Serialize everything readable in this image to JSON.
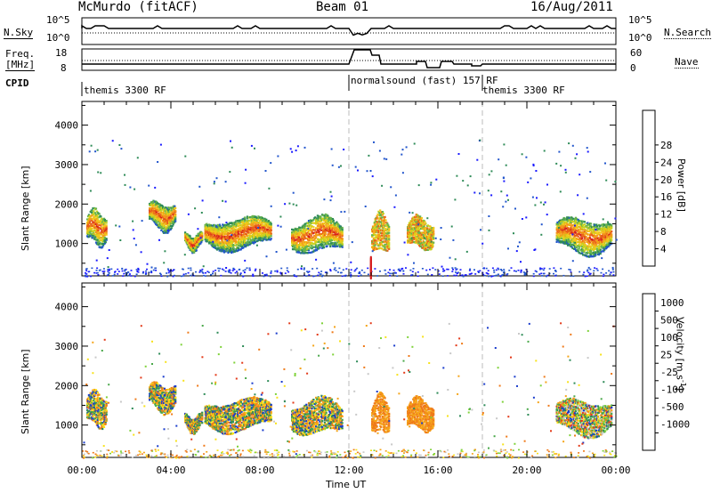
{
  "header": {
    "station": "McMurdo (fitACF)",
    "beam": "Beam 01",
    "date": "16/Aug/2011"
  },
  "top_panels": {
    "nsky_label": "N.Sky",
    "nsky_ticks": [
      "10^5",
      "10^0"
    ],
    "nsearch_label": "N.Search",
    "nsearch_ticks": [
      "10^5",
      "10^0"
    ],
    "freq_label": "Freq.",
    "freq_unit": "[MHz]",
    "freq_ticks": [
      "18",
      "8"
    ],
    "nave_label": "Nave",
    "nave_ticks": [
      "60",
      "0"
    ],
    "cpid_label": "CPID"
  },
  "cpid_segments": [
    {
      "start_hour": 0,
      "end_hour": 12,
      "label": "themis 3300 RF"
    },
    {
      "start_hour": 12,
      "end_hour": 18,
      "label": "normalsound (fast) 157 RF"
    },
    {
      "start_hour": 18,
      "end_hour": 24,
      "label": "themis 3300 RF"
    }
  ],
  "x_axis": {
    "label": "Time UT",
    "ticks": [
      "00:00",
      "04:00",
      "08:00",
      "12:00",
      "16:00",
      "20:00",
      "00:00"
    ],
    "range_hours": [
      0,
      24
    ]
  },
  "y_axis": {
    "label": "Slant Range [km]",
    "ticks": [
      "1000",
      "2000",
      "3000",
      "4000"
    ],
    "range_km": [
      180,
      4600
    ]
  },
  "power_scale": {
    "label": "Power [dB]",
    "ticks": [
      "4",
      "8",
      "12",
      "16",
      "20",
      "24",
      "28"
    ],
    "colors": [
      "#1a1aff",
      "#2255cc",
      "#2e8b57",
      "#66b34d",
      "#c8d21e",
      "#f2c81a",
      "#f39a1a",
      "#e8601a",
      "#d61e1e"
    ]
  },
  "velocity_scale": {
    "label_main": "Velocity [m s",
    "label_sup": "-1",
    "label_end": "]",
    "ticks": [
      "1000",
      "500",
      "100",
      "25",
      "-25",
      "-100",
      "-500",
      "-1000"
    ],
    "colors": [
      "#1a3ccc",
      "#2e8b57",
      "#4aa84a",
      "#7fd23a",
      "#c8c8c8",
      "#f7e21a",
      "#f5a51a",
      "#ef7a1a",
      "#e33a1a"
    ]
  },
  "chart_data": {
    "type": "heatmap",
    "title": "McMurdo (fitACF) Beam 01 16/Aug/2011",
    "xlabel": "Time UT",
    "ylabel": "Slant Range [km]",
    "x_range_hours": [
      0,
      24
    ],
    "y_range_km": [
      180,
      4600
    ],
    "panels": [
      {
        "name": "Power",
        "unit": "dB",
        "color_range": [
          0,
          30
        ]
      },
      {
        "name": "Velocity",
        "unit": "m s-1",
        "color_range": [
          -1000,
          1000
        ]
      }
    ],
    "scatter_regions": [
      {
        "t_start": 0.2,
        "t_end": 1.1,
        "r_low": 1000,
        "r_high": 1900
      },
      {
        "t_start": 3.0,
        "t_end": 4.2,
        "r_low": 1400,
        "r_high": 2100
      },
      {
        "t_start": 4.6,
        "t_end": 5.4,
        "r_low": 900,
        "r_high": 1300
      },
      {
        "t_start": 5.5,
        "t_end": 8.5,
        "r_low": 900,
        "r_high": 1700
      },
      {
        "t_start": 9.4,
        "t_end": 11.7,
        "r_low": 800,
        "r_high": 1700
      },
      {
        "t_start": 13.0,
        "t_end": 13.8,
        "r_low": 800,
        "r_high": 1800
      },
      {
        "t_start": 14.6,
        "t_end": 15.8,
        "r_low": 900,
        "r_high": 1700
      },
      {
        "t_start": 21.3,
        "t_end": 23.8,
        "r_low": 800,
        "r_high": 1700
      }
    ]
  }
}
